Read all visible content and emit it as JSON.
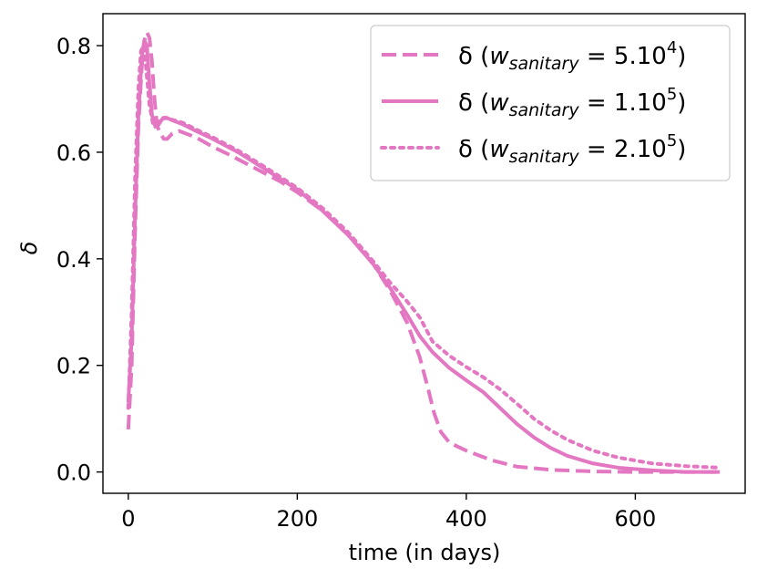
{
  "chart_data": {
    "type": "line",
    "title": "",
    "xlabel": "time (in days)",
    "ylabel": "δ",
    "xlim": [
      -30,
      730
    ],
    "ylim": [
      -0.04,
      0.86
    ],
    "xticks": [
      0,
      200,
      400,
      600
    ],
    "yticks": [
      0.0,
      0.2,
      0.4,
      0.6,
      0.8
    ],
    "xtick_labels": [
      "0",
      "200",
      "400",
      "600"
    ],
    "ytick_labels": [
      "0.0",
      "0.2",
      "0.4",
      "0.6",
      "0.8"
    ],
    "grid": false,
    "legend_position": "upper-right",
    "color": "#e377c2",
    "series": [
      {
        "name": "δ (w_sanitary = 5.10^4)",
        "legend": {
          "prefix": "δ (",
          "var": "w",
          "sub": "sanitary",
          "eq": " = 5.10",
          "sup": "4",
          "suffix": ")"
        },
        "style": "dashed",
        "points": [
          [
            0,
            0.08
          ],
          [
            4,
            0.2
          ],
          [
            8,
            0.45
          ],
          [
            12,
            0.65
          ],
          [
            16,
            0.76
          ],
          [
            19,
            0.81
          ],
          [
            22,
            0.825
          ],
          [
            25,
            0.815
          ],
          [
            28,
            0.77
          ],
          [
            31,
            0.7
          ],
          [
            34,
            0.65
          ],
          [
            38,
            0.635
          ],
          [
            42,
            0.625
          ],
          [
            46,
            0.625
          ],
          [
            52,
            0.635
          ],
          [
            60,
            0.64
          ],
          [
            80,
            0.628
          ],
          [
            100,
            0.61
          ],
          [
            120,
            0.595
          ],
          [
            150,
            0.57
          ],
          [
            180,
            0.545
          ],
          [
            200,
            0.525
          ],
          [
            230,
            0.49
          ],
          [
            260,
            0.445
          ],
          [
            290,
            0.39
          ],
          [
            310,
            0.34
          ],
          [
            330,
            0.28
          ],
          [
            345,
            0.215
          ],
          [
            355,
            0.155
          ],
          [
            362,
            0.11
          ],
          [
            370,
            0.075
          ],
          [
            380,
            0.055
          ],
          [
            400,
            0.04
          ],
          [
            430,
            0.022
          ],
          [
            460,
            0.01
          ],
          [
            500,
            0.004
          ],
          [
            550,
            0.001
          ],
          [
            600,
            0.0
          ],
          [
            700,
            0.0
          ]
        ]
      },
      {
        "name": "δ (w_sanitary = 1.10^5)",
        "legend": {
          "prefix": "δ (",
          "var": "w",
          "sub": "sanitary",
          "eq": " = 1.10",
          "sup": "5",
          "suffix": ")"
        },
        "style": "solid",
        "points": [
          [
            0,
            0.13
          ],
          [
            4,
            0.25
          ],
          [
            8,
            0.48
          ],
          [
            12,
            0.67
          ],
          [
            16,
            0.78
          ],
          [
            19,
            0.81
          ],
          [
            22,
            0.8
          ],
          [
            25,
            0.73
          ],
          [
            28,
            0.67
          ],
          [
            32,
            0.648
          ],
          [
            36,
            0.652
          ],
          [
            40,
            0.662
          ],
          [
            45,
            0.665
          ],
          [
            52,
            0.66
          ],
          [
            65,
            0.652
          ],
          [
            80,
            0.64
          ],
          [
            100,
            0.625
          ],
          [
            130,
            0.6
          ],
          [
            160,
            0.57
          ],
          [
            200,
            0.53
          ],
          [
            230,
            0.49
          ],
          [
            260,
            0.445
          ],
          [
            290,
            0.39
          ],
          [
            310,
            0.345
          ],
          [
            330,
            0.295
          ],
          [
            345,
            0.255
          ],
          [
            360,
            0.225
          ],
          [
            380,
            0.195
          ],
          [
            400,
            0.172
          ],
          [
            420,
            0.15
          ],
          [
            440,
            0.12
          ],
          [
            460,
            0.09
          ],
          [
            480,
            0.065
          ],
          [
            500,
            0.045
          ],
          [
            520,
            0.03
          ],
          [
            550,
            0.016
          ],
          [
            580,
            0.008
          ],
          [
            620,
            0.003
          ],
          [
            660,
            0.0
          ],
          [
            700,
            0.0
          ]
        ]
      },
      {
        "name": "δ (w_sanitary = 2.10^5)",
        "legend": {
          "prefix": "δ (",
          "var": "w",
          "sub": "sanitary",
          "eq": " = 2.10",
          "sup": "5",
          "suffix": ")"
        },
        "style": "dotted",
        "points": [
          [
            0,
            0.12
          ],
          [
            4,
            0.3
          ],
          [
            8,
            0.55
          ],
          [
            12,
            0.72
          ],
          [
            15,
            0.79
          ],
          [
            18,
            0.8
          ],
          [
            21,
            0.76
          ],
          [
            25,
            0.69
          ],
          [
            29,
            0.655
          ],
          [
            33,
            0.65
          ],
          [
            37,
            0.66
          ],
          [
            42,
            0.665
          ],
          [
            50,
            0.662
          ],
          [
            65,
            0.655
          ],
          [
            80,
            0.643
          ],
          [
            100,
            0.628
          ],
          [
            130,
            0.603
          ],
          [
            160,
            0.574
          ],
          [
            200,
            0.533
          ],
          [
            230,
            0.495
          ],
          [
            260,
            0.45
          ],
          [
            290,
            0.395
          ],
          [
            310,
            0.355
          ],
          [
            330,
            0.32
          ],
          [
            345,
            0.29
          ],
          [
            360,
            0.245
          ],
          [
            380,
            0.218
          ],
          [
            400,
            0.197
          ],
          [
            420,
            0.178
          ],
          [
            440,
            0.155
          ],
          [
            460,
            0.128
          ],
          [
            480,
            0.1
          ],
          [
            500,
            0.078
          ],
          [
            520,
            0.06
          ],
          [
            550,
            0.04
          ],
          [
            580,
            0.027
          ],
          [
            620,
            0.016
          ],
          [
            660,
            0.011
          ],
          [
            700,
            0.008
          ]
        ]
      }
    ]
  }
}
